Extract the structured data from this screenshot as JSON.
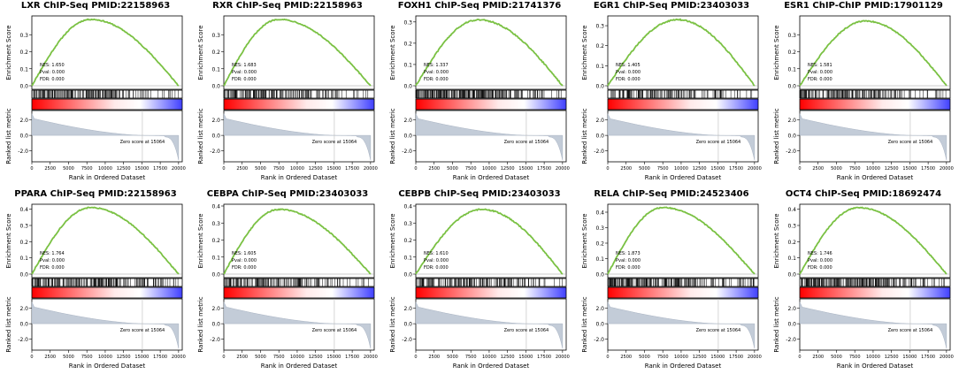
{
  "layout_grid": {
    "columns": 5,
    "rows": 2
  },
  "shared": {
    "ylabel_top": "Enrichment Score",
    "ylabel_bottom": "Ranked list metric",
    "xlabel": "Rank in Ordered Dataset",
    "x_ticks": [
      0,
      2500,
      5000,
      7500,
      10000,
      12500,
      15000,
      17500,
      20000
    ],
    "x_tick_labels": [
      "0",
      "2500",
      "5000",
      "7500",
      "10000",
      "12500",
      "15000",
      "17500",
      "20000"
    ],
    "metric_ticks": [
      2.0,
      0.0,
      -2.0
    ],
    "metric_tick_labels": [
      "2.0",
      "0.0",
      "-2.0"
    ],
    "zero_score_label": "Zero score at 15064",
    "zero_score_rank": 15064,
    "colors": {
      "curve": "#7ac143",
      "metric_fill": "#c3ccd8",
      "rank_red": "#ff0000",
      "rank_blue": "#4040ff"
    }
  },
  "chart_data": [
    {
      "type": "line",
      "title": "LXR ChIP-Seq PMID:22158963",
      "peak_rank": 8000,
      "peak_es": 0.39,
      "ylim": [
        0,
        0.4
      ],
      "y_ticks": [
        0.0,
        0.1,
        0.2,
        0.3
      ],
      "y_tick_labels": [
        "0.0",
        "0.1",
        "0.2",
        "0.3"
      ],
      "stats": {
        "nes": "NES: 1.650",
        "pval": "Pval: 0.000",
        "fdr": "FDR: 0.000"
      },
      "hit_density": 0.55
    },
    {
      "type": "line",
      "title": "RXR ChIP-Seq PMID:22158963",
      "peak_rank": 7500,
      "peak_es": 0.39,
      "ylim": [
        0,
        0.4
      ],
      "y_ticks": [
        0.0,
        0.1,
        0.2,
        0.3
      ],
      "y_tick_labels": [
        "0.0",
        "0.1",
        "0.2",
        "0.3"
      ],
      "stats": {
        "nes": "NES: 1.683",
        "pval": "Pval: 0.000",
        "fdr": "FDR: 0.000"
      },
      "hit_density": 0.5
    },
    {
      "type": "line",
      "title": "FOXH1 ChIP-Seq PMID:21741376",
      "peak_rank": 8500,
      "peak_es": 0.31,
      "ylim": [
        0,
        0.32
      ],
      "y_ticks": [
        0.0,
        0.1,
        0.2,
        0.3
      ],
      "y_tick_labels": [
        "0.0",
        "0.1",
        "0.2",
        "0.3"
      ],
      "stats": {
        "nes": "NES: 1.337",
        "pval": "Pval: 0.000",
        "fdr": "FDR: 0.000"
      },
      "hit_density": 0.7
    },
    {
      "type": "line",
      "title": "EGR1 ChIP-Seq PMID:23403033",
      "peak_rank": 9500,
      "peak_es": 0.33,
      "ylim": [
        0,
        0.34
      ],
      "y_ticks": [
        0.0,
        0.1,
        0.2,
        0.3
      ],
      "y_tick_labels": [
        "0.0",
        "0.1",
        "0.2",
        "0.3"
      ],
      "stats": {
        "nes": "NES: 1.405",
        "pval": "Pval: 0.000",
        "fdr": "FDR: 0.000"
      },
      "hit_density": 0.42
    },
    {
      "type": "line",
      "title": "ESR1 ChIP-ChIP PMID:17901129",
      "peak_rank": 9000,
      "peak_es": 0.38,
      "ylim": [
        0,
        0.4
      ],
      "y_ticks": [
        0.0,
        0.1,
        0.2,
        0.3
      ],
      "y_tick_labels": [
        "0.0",
        "0.1",
        "0.2",
        "0.3"
      ],
      "stats": {
        "nes": "NES: 1.581",
        "pval": "Pval: 0.000",
        "fdr": "FDR: 0.000"
      },
      "hit_density": 0.45
    },
    {
      "type": "line",
      "title": "PPARA ChIP-Seq PMID:22158963",
      "peak_rank": 8000,
      "peak_es": 0.41,
      "ylim": [
        0,
        0.42
      ],
      "y_ticks": [
        0.0,
        0.1,
        0.2,
        0.3,
        0.4
      ],
      "y_tick_labels": [
        "0.0",
        "0.1",
        "0.2",
        "0.3",
        "0.4"
      ],
      "stats": {
        "nes": "NES: 1.764",
        "pval": "Pval: 0.000",
        "fdr": "FDR: 0.000"
      },
      "hit_density": 0.55
    },
    {
      "type": "line",
      "title": "CEBPA ChIP-Seq PMID:23403033",
      "peak_rank": 7500,
      "peak_es": 0.38,
      "ylim": [
        0,
        0.4
      ],
      "y_ticks": [
        0.0,
        0.1,
        0.2,
        0.3,
        0.4
      ],
      "y_tick_labels": [
        "0.0",
        "0.1",
        "0.2",
        "0.3",
        "0.4"
      ],
      "stats": {
        "nes": "NES: 1.605",
        "pval": "Pval: 0.000",
        "fdr": "FDR: 0.000"
      },
      "hit_density": 0.4
    },
    {
      "type": "line",
      "title": "CEBPB ChIP-Seq PMID:23403033",
      "peak_rank": 9000,
      "peak_es": 0.38,
      "ylim": [
        0,
        0.4
      ],
      "y_ticks": [
        0.0,
        0.1,
        0.2,
        0.3,
        0.4
      ],
      "y_tick_labels": [
        "0.0",
        "0.1",
        "0.2",
        "0.3",
        "0.4"
      ],
      "stats": {
        "nes": "NES: 1.610",
        "pval": "Pval: 0.000",
        "fdr": "FDR: 0.000"
      },
      "hit_density": 0.48
    },
    {
      "type": "line",
      "title": "RELA ChIP-Seq PMID:24523406",
      "peak_rank": 7500,
      "peak_es": 0.43,
      "ylim": [
        0,
        0.44
      ],
      "y_ticks": [
        0.0,
        0.1,
        0.2,
        0.3,
        0.4
      ],
      "y_tick_labels": [
        "0.0",
        "0.1",
        "0.2",
        "0.3",
        "0.4"
      ],
      "stats": {
        "nes": "NES: 1.873",
        "pval": "Pval: 0.000",
        "fdr": "FDR: 0.000"
      },
      "hit_density": 0.6
    },
    {
      "type": "line",
      "title": "OCT4 ChIP-Seq PMID:18692474",
      "peak_rank": 8000,
      "peak_es": 0.41,
      "ylim": [
        0,
        0.42
      ],
      "y_ticks": [
        0.0,
        0.1,
        0.2,
        0.3,
        0.4
      ],
      "y_tick_labels": [
        "0.0",
        "0.1",
        "0.2",
        "0.3",
        "0.4"
      ],
      "stats": {
        "nes": "NES: 1.746",
        "pval": "Pval: 0.000",
        "fdr": "FDR: 0.000"
      },
      "hit_density": 0.58
    }
  ]
}
